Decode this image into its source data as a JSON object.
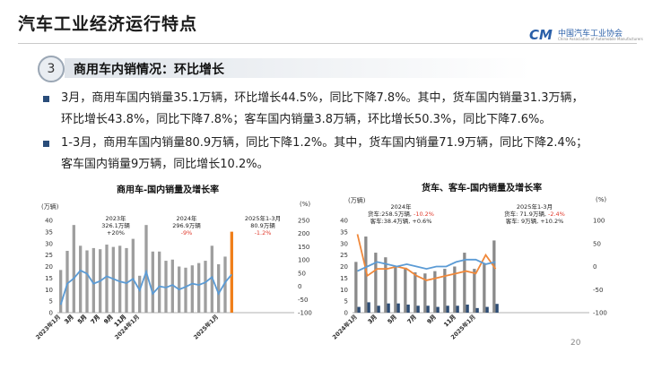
{
  "header": {
    "title": "汽车工业经济运行特点",
    "logo_mark": "CM",
    "logo_text": "中国汽车工业协会",
    "logo_sub": "China Association of Automobile Manufacturers"
  },
  "section": {
    "number": "3",
    "title": "商用车内销情况：环比增长"
  },
  "bullets": [
    {
      "line1": "3月，商用车国内销量35.1万辆，环比增长44.5%，同比下降7.8%。其中，货车国内销量31.3万辆，",
      "line2": "环比增长43.8%，同比下降7.8%；客车国内销量3.8万辆，环比增长50.3%，同比下降7.6%。"
    },
    {
      "line1": "1-3月，商用车国内销量80.9万辆，同比下降1.2%。其中，货车国内销量71.9万辆，同比下降2.4%；",
      "line2": "客车国内销量9万辆，同比增长10.2%。"
    }
  ],
  "page_number": "20",
  "chart_data": [
    {
      "type": "bar",
      "title": "商用车-国内销量及增长率",
      "y_unit": "(万辆)",
      "y2_unit": "(%)",
      "ylim": [
        0,
        40
      ],
      "yticks": [
        "0",
        "5",
        "10",
        "15",
        "20",
        "25",
        "30",
        "35",
        "40"
      ],
      "y2lim": [
        -100,
        250
      ],
      "y2ticks": [
        "-100",
        "-50",
        "0",
        "50",
        "100",
        "150",
        "200",
        "250"
      ],
      "categories": [
        "2023年1月",
        "2",
        "3月",
        "4",
        "5月",
        "6",
        "7月",
        "8",
        "9月",
        "10",
        "11月",
        "12",
        "2024年1月",
        "2",
        "3月",
        "4",
        "5月",
        "6",
        "7月",
        "8",
        "9月",
        "10",
        "11月",
        "12",
        "2025年1月",
        "2",
        "3月",
        "4",
        "5月",
        "6",
        "7月",
        "8",
        "9月",
        "10",
        "11月",
        "12"
      ],
      "x_tick_labels": [
        "2023年1月",
        "3月",
        "5月",
        "7月",
        "9月",
        "11月",
        "2024年1月",
        "3月",
        "5月",
        "7月",
        "9月",
        "11月",
        "2025年1月",
        "3月",
        "5月",
        "7月",
        "9月",
        "11月"
      ],
      "series": [
        {
          "kind": "bar",
          "values": [
            18.5,
            26.8,
            38.0,
            29.0,
            27.0,
            28.0,
            27.5,
            29.5,
            28.5,
            29.0,
            28.0,
            32.0,
            16.0,
            38.0,
            26.5,
            26.5,
            22.5,
            23.0,
            20.0,
            19.5,
            20.5,
            21.5,
            22.5,
            29.0,
            21.0,
            24.3,
            35.1,
            null,
            null,
            null,
            null,
            null,
            null,
            null,
            null,
            null
          ],
          "color": "#9e9e9e",
          "highlight_index": 26,
          "highlight_color": "#f07f1a"
        },
        {
          "kind": "line",
          "values": [
            -70,
            10,
            30,
            60,
            48,
            10,
            20,
            38,
            28,
            18,
            12,
            28,
            -15,
            55,
            -28,
            0,
            -5,
            5,
            -12,
            -2,
            10,
            5,
            15,
            35,
            -28,
            15,
            45,
            null,
            null,
            null,
            null,
            null,
            null,
            null,
            null,
            null
          ],
          "color": "#5b9bd5",
          "axis": "right"
        }
      ],
      "annotations": [
        {
          "lines": [
            "2023年",
            "326.1万辆",
            "+20%"
          ],
          "red_line": -1
        },
        {
          "lines": [
            "2024年",
            "296.9万辆",
            "-9%"
          ],
          "red_line": 2
        },
        {
          "lines": [
            "2025年1-3月",
            "80.9万辆",
            "-1.2%"
          ],
          "red_line": 2
        }
      ]
    },
    {
      "type": "bar",
      "title": "货车、客车-国内销量及增长率",
      "y_unit": "(万辆)",
      "y2_unit": "(%)",
      "ylim": [
        0,
        40
      ],
      "yticks": [
        "0",
        "5",
        "10",
        "15",
        "20",
        "25",
        "30",
        "35",
        "40"
      ],
      "y2lim": [
        -100,
        100
      ],
      "y2ticks": [
        "-100",
        "-50",
        "0",
        "50",
        "100"
      ],
      "categories": [
        "2024年1月",
        "2",
        "3月",
        "4",
        "5月",
        "6",
        "7月",
        "8",
        "9月",
        "10",
        "11月",
        "12",
        "2025年1月",
        "2",
        "3月",
        "4",
        "5月",
        "6",
        "7月",
        "8",
        "9月",
        "10",
        "11月",
        "12"
      ],
      "x_tick_labels": [
        "2024年1月",
        "3月",
        "5月",
        "7月",
        "9月",
        "11月",
        "2025年1月",
        "3月",
        "5月",
        "7月",
        "9月",
        "11月"
      ],
      "series": [
        {
          "kind": "bar",
          "values": [
            22.0,
            33.0,
            26.0,
            24.0,
            20.0,
            19.5,
            17.5,
            17.0,
            18.0,
            19.0,
            20.0,
            26.0,
            19.0,
            21.5,
            31.3,
            null,
            null,
            null,
            null,
            null,
            null,
            null,
            null,
            null
          ],
          "color": "#8a8a8a"
        },
        {
          "kind": "bar",
          "values": [
            2.5,
            4.5,
            3.0,
            4.0,
            4.0,
            3.5,
            3.0,
            3.0,
            2.5,
            3.0,
            3.0,
            3.5,
            2.0,
            2.5,
            3.8,
            null,
            null,
            null,
            null,
            null,
            null,
            null,
            null,
            null
          ],
          "color": "#2e4d75"
        },
        {
          "kind": "line",
          "values": [
            70,
            -20,
            -5,
            -5,
            0,
            -5,
            -20,
            -30,
            -25,
            -20,
            -15,
            -10,
            -15,
            25,
            -5,
            null,
            null,
            null,
            null,
            null,
            null,
            null,
            null,
            null
          ],
          "color": "#f0883a",
          "axis": "right"
        },
        {
          "kind": "line",
          "values": [
            -10,
            0,
            10,
            5,
            0,
            5,
            0,
            -5,
            0,
            0,
            10,
            15,
            15,
            5,
            10,
            null,
            null,
            null,
            null,
            null,
            null,
            null,
            null,
            null
          ],
          "color": "#5b9bd5",
          "axis": "right"
        }
      ],
      "annotations": [
        {
          "lines": [
            "2024年",
            "货车:258.5万辆, -10.2%",
            "客车:38.4万辆, +0.6%"
          ],
          "red_part": "-10.2%"
        },
        {
          "lines": [
            "2025年1-3月",
            "货车: 71.9万辆, -2.4%",
            "客车: 9万辆, +10.2%"
          ],
          "red_part": "-2.4%"
        }
      ]
    }
  ]
}
